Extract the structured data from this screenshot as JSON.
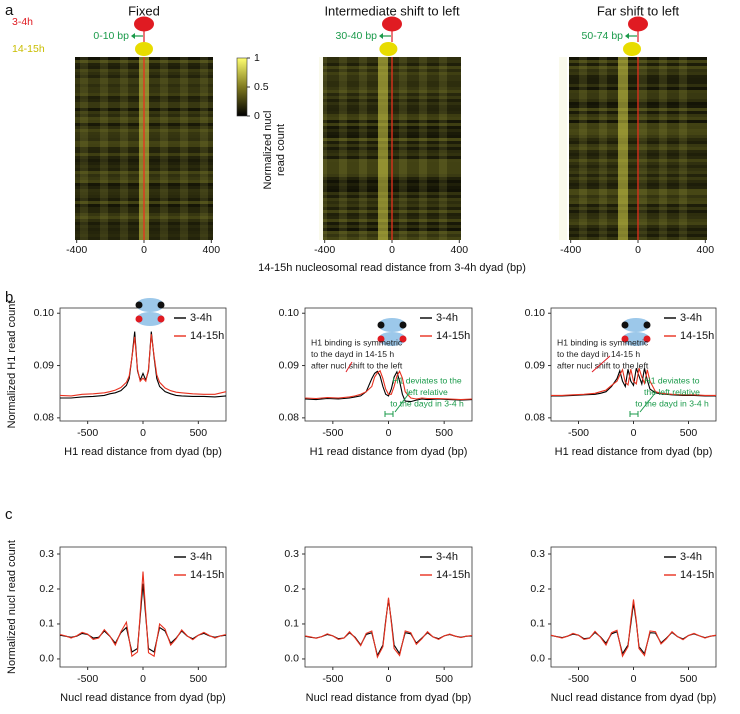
{
  "panel_labels": [
    "a",
    "b",
    "c"
  ],
  "chart_data": [
    {
      "type": "heatmap",
      "title": "Fixed",
      "shift_label": "0-10 bp",
      "stage_labels": [
        "3-4h",
        "14-15h"
      ],
      "xlim": [
        -410,
        410
      ],
      "xticks": [
        -400,
        0,
        400
      ],
      "colorbar": {
        "label_lines": [
          "Normalized nucl",
          "read count"
        ],
        "lim": [
          0,
          1
        ],
        "ticks": [
          0,
          0.5,
          1
        ]
      }
    },
    {
      "type": "heatmap",
      "title": "Intermediate shift to left",
      "shift_label": "30-40 bp",
      "xlim": [
        -410,
        410
      ],
      "xticks": [
        -400,
        0,
        400
      ],
      "xlabel": "14-15h nucleosomal read distance from 3-4h dyad (bp)"
    },
    {
      "type": "heatmap",
      "title": "Far shift to left",
      "shift_label": "50-74 bp",
      "xlim": [
        -410,
        410
      ],
      "xticks": [
        -400,
        0,
        400
      ]
    },
    {
      "type": "line",
      "ylabel": "Normalized H1 read count",
      "xlabel": "H1 read distance from dyad (bp)",
      "xlim": [
        -750,
        750
      ],
      "xticks": [
        -500,
        0,
        500
      ],
      "ylim": [
        0.0794,
        0.101
      ],
      "yticks": [
        0.08,
        0.09,
        {
          "value": 0.1,
          "label": "0.10"
        }
      ],
      "x": [
        -750,
        -650,
        -550,
        -450,
        -350,
        -300,
        -250,
        -200,
        -150,
        -125,
        -100,
        -75,
        -50,
        -25,
        0,
        25,
        50,
        75,
        100,
        125,
        150,
        200,
        250,
        300,
        350,
        450,
        550,
        650,
        750
      ],
      "series": [
        {
          "name": "3-4h",
          "color": "#000000",
          "values": [
            0.0838,
            0.0838,
            0.084,
            0.0841,
            0.0843,
            0.0846,
            0.0848,
            0.0852,
            0.0862,
            0.0875,
            0.0915,
            0.0965,
            0.089,
            0.0872,
            0.0885,
            0.0872,
            0.089,
            0.0965,
            0.0915,
            0.0875,
            0.086,
            0.085,
            0.0846,
            0.0843,
            0.0842,
            0.0841,
            0.0841,
            0.084,
            0.0842
          ]
        },
        {
          "name": "14-15h",
          "color": "#e8311f",
          "values": [
            0.0843,
            0.0842,
            0.0845,
            0.0846,
            0.0848,
            0.085,
            0.0853,
            0.0858,
            0.0868,
            0.088,
            0.0915,
            0.0955,
            0.0893,
            0.087,
            0.0876,
            0.087,
            0.0893,
            0.096,
            0.0918,
            0.0882,
            0.0868,
            0.0857,
            0.0852,
            0.0849,
            0.0848,
            0.0846,
            0.0845,
            0.0845,
            0.085
          ]
        }
      ]
    },
    {
      "type": "line",
      "xlabel": "H1 read distance from dyad (bp)",
      "xlim": [
        -750,
        750
      ],
      "xticks": [
        -500,
        0,
        500
      ],
      "ylim": [
        0.0794,
        0.101
      ],
      "yticks": [
        0.08,
        0.09,
        {
          "value": 0.1,
          "label": "0.10"
        }
      ],
      "x": [
        -750,
        -650,
        -550,
        -450,
        -350,
        -300,
        -250,
        -200,
        -150,
        -125,
        -100,
        -75,
        -50,
        -25,
        0,
        25,
        50,
        75,
        100,
        125,
        150,
        200,
        250,
        300,
        350,
        450,
        550,
        650,
        750
      ],
      "series": [
        {
          "name": "3-4h",
          "color": "#000000",
          "values": [
            0.0836,
            0.0835,
            0.0837,
            0.0836,
            0.0838,
            0.084,
            0.0842,
            0.085,
            0.0875,
            0.0885,
            0.0889,
            0.088,
            0.086,
            0.0845,
            0.0842,
            0.0855,
            0.0878,
            0.0888,
            0.087,
            0.0845,
            0.0832,
            0.0831,
            0.0834,
            0.0836,
            0.0835,
            0.0836,
            0.0835,
            0.0834,
            0.0835
          ]
        },
        {
          "name": "14-15h",
          "color": "#e8311f",
          "values": [
            0.0838,
            0.0837,
            0.0839,
            0.0838,
            0.084,
            0.0842,
            0.0845,
            0.085,
            0.086,
            0.0878,
            0.0886,
            0.089,
            0.0875,
            0.0855,
            0.0845,
            0.0845,
            0.086,
            0.088,
            0.0889,
            0.0876,
            0.085,
            0.0838,
            0.0836,
            0.0838,
            0.0837,
            0.0837,
            0.0836,
            0.0835,
            0.0836
          ]
        }
      ],
      "annotations": [
        {
          "lines": [
            "H1 binding is symmetric",
            "to the dayd in 14-15 h",
            "after nucl shift to the left"
          ],
          "color": "#222222"
        },
        {
          "lines": [
            "H1 deviates to the",
            "left relative",
            "to the dayd in 3-4 h"
          ],
          "color": "#1a9a4a"
        }
      ]
    },
    {
      "type": "line",
      "xlabel": "H1 read distance from dyad (bp)",
      "xlim": [
        -750,
        750
      ],
      "xticks": [
        -500,
        0,
        500
      ],
      "ylim": [
        0.0794,
        0.101
      ],
      "yticks": [
        0.08,
        0.09,
        {
          "value": 0.1,
          "label": "0.10"
        }
      ],
      "x": [
        -750,
        -650,
        -550,
        -450,
        -350,
        -300,
        -250,
        -200,
        -150,
        -125,
        -100,
        -75,
        -50,
        -25,
        0,
        25,
        50,
        75,
        100,
        125,
        150,
        200,
        250,
        300,
        350,
        450,
        550,
        650,
        750
      ],
      "series": [
        {
          "name": "3-4h",
          "color": "#000000",
          "values": [
            0.0842,
            0.0842,
            0.0843,
            0.0844,
            0.0845,
            0.0847,
            0.085,
            0.086,
            0.0875,
            0.089,
            0.087,
            0.086,
            0.0893,
            0.087,
            0.0862,
            0.0895,
            0.088,
            0.0865,
            0.0895,
            0.0872,
            0.0855,
            0.0848,
            0.0846,
            0.0845,
            0.0844,
            0.0843,
            0.0843,
            0.0842,
            0.0842
          ]
        },
        {
          "name": "14-15h",
          "color": "#e8311f",
          "values": [
            0.0843,
            0.0843,
            0.0844,
            0.0845,
            0.0847,
            0.085,
            0.0853,
            0.0862,
            0.087,
            0.0882,
            0.0892,
            0.0868,
            0.0863,
            0.0893,
            0.087,
            0.0865,
            0.0895,
            0.0878,
            0.0866,
            0.0892,
            0.087,
            0.085,
            0.0847,
            0.0846,
            0.0845,
            0.0844,
            0.0844,
            0.0843,
            0.0843
          ]
        }
      ],
      "annotations": [
        {
          "lines": [
            "H1 binding is symmetric",
            "to the dayd in 14-15 h",
            "after nucl shift to the left"
          ],
          "color": "#222222"
        },
        {
          "lines": [
            "H1 deviates to",
            "the left relative",
            "to the dayd in 3-4 h"
          ],
          "color": "#1a9a4a"
        }
      ]
    },
    {
      "type": "line",
      "ylabel": "Normalized nucl read count",
      "xlabel": "Nucl read distance from dyad (bp)",
      "xlim": [
        -750,
        750
      ],
      "xticks": [
        -500,
        0,
        500
      ],
      "ylim": [
        -0.023,
        0.32
      ],
      "yticks": [
        {
          "value": 0,
          "label": "0.0"
        },
        0.1,
        0.2,
        0.3
      ],
      "x": [
        -750,
        -700,
        -650,
        -600,
        -550,
        -500,
        -450,
        -400,
        -350,
        -300,
        -250,
        -200,
        -150,
        -100,
        -50,
        -25,
        0,
        25,
        50,
        100,
        150,
        200,
        250,
        300,
        350,
        400,
        450,
        500,
        550,
        600,
        650,
        700,
        750
      ],
      "series": [
        {
          "name": "3-4h",
          "color": "#000000",
          "values": [
            0.068,
            0.065,
            0.062,
            0.065,
            0.073,
            0.07,
            0.06,
            0.062,
            0.08,
            0.065,
            0.045,
            0.075,
            0.09,
            0.02,
            0.03,
            0.12,
            0.215,
            0.12,
            0.03,
            0.02,
            0.09,
            0.08,
            0.045,
            0.06,
            0.08,
            0.065,
            0.058,
            0.068,
            0.073,
            0.066,
            0.062,
            0.066,
            0.068
          ]
        },
        {
          "name": "14-15h",
          "color": "#e8311f",
          "values": [
            0.07,
            0.066,
            0.06,
            0.066,
            0.076,
            0.071,
            0.056,
            0.06,
            0.084,
            0.066,
            0.04,
            0.078,
            0.105,
            0.008,
            0.02,
            0.13,
            0.25,
            0.13,
            0.018,
            0.008,
            0.1,
            0.085,
            0.04,
            0.058,
            0.083,
            0.066,
            0.055,
            0.068,
            0.076,
            0.067,
            0.06,
            0.066,
            0.07
          ]
        }
      ]
    },
    {
      "type": "line",
      "xlabel": "Nucl read distance from dyad (bp)",
      "xlim": [
        -750,
        750
      ],
      "xticks": [
        -500,
        0,
        500
      ],
      "ylim": [
        -0.023,
        0.32
      ],
      "yticks": [
        {
          "value": 0,
          "label": "0.0"
        },
        0.1,
        0.2,
        0.3
      ],
      "x": [
        -750,
        -700,
        -650,
        -600,
        -550,
        -500,
        -450,
        -400,
        -350,
        -300,
        -250,
        -200,
        -150,
        -100,
        -50,
        -25,
        0,
        25,
        50,
        100,
        150,
        200,
        250,
        300,
        350,
        400,
        450,
        500,
        550,
        600,
        650,
        700,
        750
      ],
      "series": [
        {
          "name": "3-4h",
          "color": "#000000",
          "values": [
            0.065,
            0.062,
            0.06,
            0.064,
            0.07,
            0.066,
            0.058,
            0.06,
            0.075,
            0.062,
            0.04,
            0.07,
            0.075,
            0.01,
            0.04,
            0.11,
            0.17,
            0.11,
            0.04,
            0.015,
            0.075,
            0.072,
            0.045,
            0.06,
            0.075,
            0.063,
            0.058,
            0.066,
            0.07,
            0.065,
            0.062,
            0.065,
            0.066
          ]
        },
        {
          "name": "14-15h",
          "color": "#e8311f",
          "values": [
            0.066,
            0.063,
            0.059,
            0.064,
            0.072,
            0.066,
            0.056,
            0.06,
            0.078,
            0.06,
            0.038,
            0.073,
            0.08,
            0.005,
            0.035,
            0.105,
            0.175,
            0.105,
            0.03,
            0.01,
            0.08,
            0.075,
            0.042,
            0.058,
            0.078,
            0.063,
            0.056,
            0.066,
            0.071,
            0.065,
            0.061,
            0.065,
            0.067
          ]
        }
      ]
    },
    {
      "type": "line",
      "xlabel": "Nucl read distance from dyad (bp)",
      "xlim": [
        -750,
        750
      ],
      "xticks": [
        -500,
        0,
        500
      ],
      "ylim": [
        -0.023,
        0.32
      ],
      "yticks": [
        {
          "value": 0,
          "label": "0.0"
        },
        0.1,
        0.2,
        0.3
      ],
      "x": [
        -750,
        -700,
        -650,
        -600,
        -550,
        -500,
        -450,
        -400,
        -350,
        -300,
        -250,
        -200,
        -150,
        -100,
        -50,
        -25,
        0,
        25,
        50,
        100,
        150,
        200,
        250,
        300,
        350,
        400,
        450,
        500,
        550,
        600,
        650,
        700,
        750
      ],
      "series": [
        {
          "name": "3-4h",
          "color": "#000000",
          "values": [
            0.067,
            0.064,
            0.061,
            0.065,
            0.071,
            0.068,
            0.058,
            0.06,
            0.076,
            0.063,
            0.045,
            0.072,
            0.078,
            0.015,
            0.04,
            0.1,
            0.16,
            0.105,
            0.035,
            0.015,
            0.075,
            0.074,
            0.046,
            0.06,
            0.076,
            0.064,
            0.057,
            0.067,
            0.072,
            0.066,
            0.061,
            0.065,
            0.067
          ]
        },
        {
          "name": "14-15h",
          "color": "#e8311f",
          "values": [
            0.068,
            0.064,
            0.06,
            0.065,
            0.073,
            0.068,
            0.056,
            0.059,
            0.079,
            0.062,
            0.04,
            0.075,
            0.082,
            0.008,
            0.035,
            0.11,
            0.17,
            0.11,
            0.03,
            0.01,
            0.08,
            0.078,
            0.043,
            0.058,
            0.078,
            0.064,
            0.055,
            0.067,
            0.073,
            0.066,
            0.06,
            0.065,
            0.068
          ]
        }
      ]
    }
  ]
}
